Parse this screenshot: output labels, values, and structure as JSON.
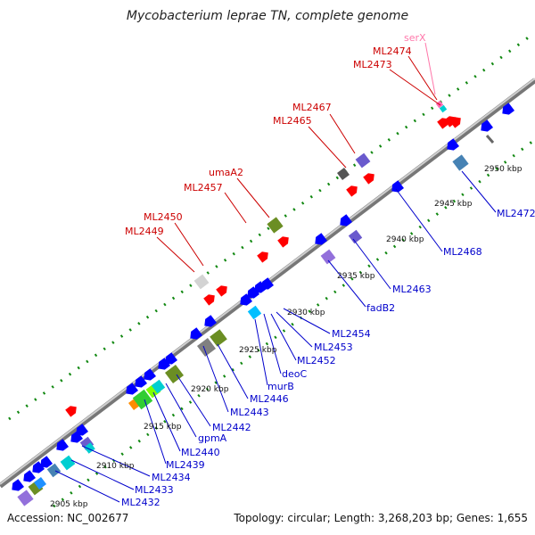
{
  "title": "Mycobacterium leprae TN, complete genome",
  "accession": "Accession: NC_002677",
  "summary": "Topology: circular; Length: 3,268,203 bp; Genes: 1,655",
  "ruler": [
    "2905 kbp",
    "2910 kbp",
    "2915 kbp",
    "2920 kbp",
    "2925 kbp",
    "2930 kbp",
    "2935 kbp",
    "2940 kbp",
    "2945 kbp",
    "2950 kbp"
  ],
  "colors": {
    "forward_label": "#cc0000",
    "reverse_label": "#0000cc",
    "rna_label": "#ff77aa",
    "backbone": "#8a8a8a",
    "dots": "#118811"
  },
  "labels_forward": [
    "serX",
    "ML2474",
    "ML2473",
    "ML2467",
    "ML2465",
    "umaA2",
    "ML2457",
    "ML2450",
    "ML2449"
  ],
  "labels_reverse": [
    "ML2472",
    "ML2468",
    "ML2463",
    "fadB2",
    "ML2454",
    "ML2453",
    "ML2452",
    "deoC",
    "murB",
    "ML2446",
    "ML2443",
    "ML2442",
    "gpmA",
    "ML2440",
    "ML2439",
    "ML2434",
    "ML2433",
    "ML2432"
  ],
  "tracks": {
    "forward": [
      {
        "color": "#ff0000",
        "kind": "arrow"
      },
      {
        "color": "#ff0000",
        "kind": "arrow"
      },
      {
        "color": "#ff0000",
        "kind": "arrow"
      },
      {
        "color": "#ff0000",
        "kind": "arrow"
      },
      {
        "color": "#ff0000",
        "kind": "arrow"
      },
      {
        "color": "#ff0000",
        "kind": "arrow"
      },
      {
        "color": "#ff0000",
        "kind": "arrow"
      },
      {
        "color": "#ff0000",
        "kind": "arrow"
      },
      {
        "color": "#ff0000",
        "kind": "arrow"
      },
      {
        "color": "#ff0000",
        "kind": "arrow"
      }
    ],
    "reverse": [
      {
        "color": "#0000ff",
        "kind": "arrow"
      },
      {
        "color": "#0000ff",
        "kind": "arrow"
      },
      {
        "color": "#0000ff",
        "kind": "arrow"
      },
      {
        "color": "#0000ff",
        "kind": "arrow"
      },
      {
        "color": "#0000ff",
        "kind": "arrow"
      },
      {
        "color": "#0000ff",
        "kind": "arrow"
      },
      {
        "color": "#0000ff",
        "kind": "arrow"
      },
      {
        "color": "#0000ff",
        "kind": "arrow"
      },
      {
        "color": "#0000ff",
        "kind": "arrow"
      },
      {
        "color": "#0000ff",
        "kind": "arrow"
      },
      {
        "color": "#0000ff",
        "kind": "arrow"
      },
      {
        "color": "#0000ff",
        "kind": "arrow"
      },
      {
        "color": "#0000ff",
        "kind": "arrow"
      },
      {
        "color": "#0000ff",
        "kind": "arrow"
      },
      {
        "color": "#0000ff",
        "kind": "arrow"
      },
      {
        "color": "#0000ff",
        "kind": "arrow"
      },
      {
        "color": "#0000ff",
        "kind": "arrow"
      },
      {
        "color": "#0000ff",
        "kind": "arrow"
      },
      {
        "color": "#0000ff",
        "kind": "arrow"
      },
      {
        "color": "#0000ff",
        "kind": "arrow"
      },
      {
        "color": "#0000ff",
        "kind": "arrow"
      },
      {
        "color": "#0000ff",
        "kind": "arrow"
      },
      {
        "color": "#0000ff",
        "kind": "arrow"
      },
      {
        "color": "#0000ff",
        "kind": "arrow"
      }
    ],
    "cog": [
      "#9370db",
      "#4682b4",
      "#6b8e23",
      "#00ced1",
      "#32cd32",
      "#ff8c00",
      "#808080",
      "#d3d3d3",
      "#1e90ff",
      "#87ceeb",
      "#ff69b4",
      "#6a5acd"
    ]
  }
}
